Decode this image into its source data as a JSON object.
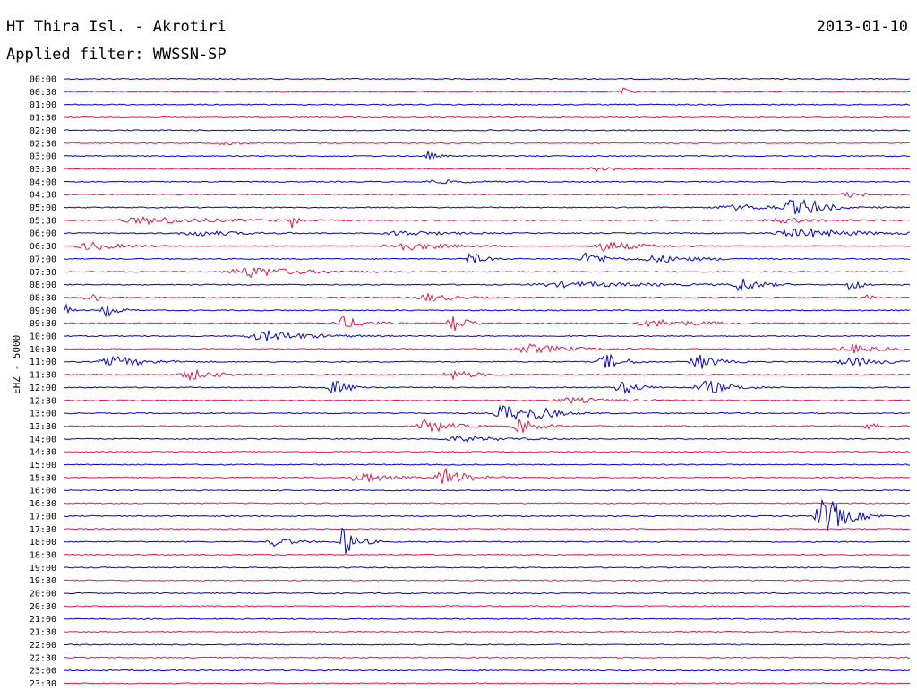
{
  "header": {
    "station": "HT Thira Isl. - Akrotiri",
    "date": "2013-01-10",
    "filter": "Applied filter: WWSSN-SP"
  },
  "chart_data": {
    "type": "line",
    "title": "HT Thira Isl. - Akrotiri",
    "ylabel": "EHZ - 5000",
    "colors": [
      "#0000cc",
      "#e8174a"
    ],
    "rows": [
      {
        "label": "00:00",
        "bursts": []
      },
      {
        "label": "00:30",
        "bursts": [
          {
            "x": 0.66,
            "amp": 4,
            "w": 0.02
          }
        ]
      },
      {
        "label": "01:00",
        "bursts": []
      },
      {
        "label": "01:30",
        "bursts": []
      },
      {
        "label": "02:00",
        "bursts": []
      },
      {
        "label": "02:30",
        "bursts": [
          {
            "x": 0.19,
            "amp": 3,
            "w": 0.03
          }
        ]
      },
      {
        "label": "03:00",
        "bursts": [
          {
            "x": 0.43,
            "amp": 5,
            "w": 0.02
          }
        ]
      },
      {
        "label": "03:30",
        "bursts": [
          {
            "x": 0.63,
            "amp": 2,
            "w": 0.06
          }
        ]
      },
      {
        "label": "04:00",
        "bursts": [
          {
            "x": 0.44,
            "amp": 2,
            "w": 0.08
          }
        ]
      },
      {
        "label": "04:30",
        "bursts": [
          {
            "x": 0.93,
            "amp": 3,
            "w": 0.05
          }
        ]
      },
      {
        "label": "05:00",
        "bursts": [
          {
            "x": 0.86,
            "amp": 8,
            "w": 0.04
          },
          {
            "x": 0.88,
            "amp": 6,
            "w": 0.04
          },
          {
            "x": 0.8,
            "amp": 3,
            "w": 0.15
          }
        ]
      },
      {
        "label": "05:30",
        "bursts": [
          {
            "x": 0.1,
            "amp": 4,
            "w": 0.17
          },
          {
            "x": 0.27,
            "amp": 12,
            "w": 0.01
          },
          {
            "x": 0.85,
            "amp": 3,
            "w": 0.1
          }
        ]
      },
      {
        "label": "06:00",
        "bursts": [
          {
            "x": 0.16,
            "amp": 3,
            "w": 0.1
          },
          {
            "x": 0.4,
            "amp": 3,
            "w": 0.1
          },
          {
            "x": 0.87,
            "amp": 5,
            "w": 0.14
          }
        ]
      },
      {
        "label": "06:30",
        "bursts": [
          {
            "x": 0.03,
            "amp": 5,
            "w": 0.07
          },
          {
            "x": 0.4,
            "amp": 5,
            "w": 0.1
          },
          {
            "x": 0.64,
            "amp": 6,
            "w": 0.08
          }
        ]
      },
      {
        "label": "07:00",
        "bursts": [
          {
            "x": 0.48,
            "amp": 8,
            "w": 0.03
          },
          {
            "x": 0.62,
            "amp": 9,
            "w": 0.04
          },
          {
            "x": 0.7,
            "amp": 4,
            "w": 0.1
          }
        ]
      },
      {
        "label": "07:30",
        "bursts": [
          {
            "x": 0.22,
            "amp": 6,
            "w": 0.12
          }
        ]
      },
      {
        "label": "08:00",
        "bursts": [
          {
            "x": 0.8,
            "amp": 9,
            "w": 0.04
          },
          {
            "x": 0.93,
            "amp": 10,
            "w": 0.02
          },
          {
            "x": 0.6,
            "amp": 3,
            "w": 0.2
          }
        ]
      },
      {
        "label": "08:30",
        "bursts": [
          {
            "x": 0.03,
            "amp": 6,
            "w": 0.03
          },
          {
            "x": 0.43,
            "amp": 5,
            "w": 0.06
          },
          {
            "x": 0.95,
            "amp": 8,
            "w": 0.01
          }
        ]
      },
      {
        "label": "09:00",
        "bursts": [
          {
            "x": 0.0,
            "amp": 10,
            "w": 0.01
          },
          {
            "x": 0.05,
            "amp": 7,
            "w": 0.03
          }
        ]
      },
      {
        "label": "09:30",
        "bursts": [
          {
            "x": 0.33,
            "amp": 7,
            "w": 0.05
          },
          {
            "x": 0.46,
            "amp": 12,
            "w": 0.03
          },
          {
            "x": 0.7,
            "amp": 4,
            "w": 0.12
          }
        ]
      },
      {
        "label": "10:00",
        "bursts": [
          {
            "x": 0.24,
            "amp": 6,
            "w": 0.1
          }
        ]
      },
      {
        "label": "10:30",
        "bursts": [
          {
            "x": 0.55,
            "amp": 5,
            "w": 0.1
          },
          {
            "x": 0.93,
            "amp": 5,
            "w": 0.07
          }
        ]
      },
      {
        "label": "11:00",
        "bursts": [
          {
            "x": 0.06,
            "amp": 6,
            "w": 0.08
          },
          {
            "x": 0.64,
            "amp": 10,
            "w": 0.04
          },
          {
            "x": 0.75,
            "amp": 10,
            "w": 0.04
          },
          {
            "x": 0.93,
            "amp": 5,
            "w": 0.07
          }
        ]
      },
      {
        "label": "11:30",
        "bursts": [
          {
            "x": 0.15,
            "amp": 6,
            "w": 0.06
          },
          {
            "x": 0.46,
            "amp": 5,
            "w": 0.06
          }
        ]
      },
      {
        "label": "12:00",
        "bursts": [
          {
            "x": 0.32,
            "amp": 8,
            "w": 0.04
          },
          {
            "x": 0.66,
            "amp": 8,
            "w": 0.04
          },
          {
            "x": 0.76,
            "amp": 8,
            "w": 0.06
          }
        ]
      },
      {
        "label": "12:30",
        "bursts": [
          {
            "x": 0.6,
            "amp": 3,
            "w": 0.1
          }
        ]
      },
      {
        "label": "13:00",
        "bursts": [
          {
            "x": 0.52,
            "amp": 11,
            "w": 0.05
          },
          {
            "x": 0.56,
            "amp": 6,
            "w": 0.05
          }
        ]
      },
      {
        "label": "13:30",
        "bursts": [
          {
            "x": 0.43,
            "amp": 9,
            "w": 0.05
          },
          {
            "x": 0.54,
            "amp": 9,
            "w": 0.04
          },
          {
            "x": 0.95,
            "amp": 3,
            "w": 0.04
          }
        ]
      },
      {
        "label": "14:00",
        "bursts": [
          {
            "x": 0.47,
            "amp": 3,
            "w": 0.1
          }
        ]
      },
      {
        "label": "14:30",
        "bursts": []
      },
      {
        "label": "15:00",
        "bursts": []
      },
      {
        "label": "15:30",
        "bursts": [
          {
            "x": 0.35,
            "amp": 8,
            "w": 0.05
          },
          {
            "x": 0.45,
            "amp": 11,
            "w": 0.05
          }
        ]
      },
      {
        "label": "16:00",
        "bursts": []
      },
      {
        "label": "16:30",
        "bursts": []
      },
      {
        "label": "17:00",
        "bursts": [
          {
            "x": 0.9,
            "amp": 24,
            "w": 0.05
          }
        ]
      },
      {
        "label": "17:30",
        "bursts": []
      },
      {
        "label": "18:00",
        "bursts": [
          {
            "x": 0.25,
            "amp": 6,
            "w": 0.04
          },
          {
            "x": 0.33,
            "amp": 18,
            "w": 0.03
          }
        ]
      },
      {
        "label": "18:30",
        "bursts": []
      },
      {
        "label": "19:00",
        "bursts": []
      },
      {
        "label": "19:30",
        "bursts": []
      },
      {
        "label": "20:00",
        "bursts": []
      },
      {
        "label": "20:30",
        "bursts": []
      },
      {
        "label": "21:00",
        "bursts": []
      },
      {
        "label": "21:30",
        "bursts": []
      },
      {
        "label": "22:00",
        "bursts": []
      },
      {
        "label": "22:30",
        "bursts": []
      },
      {
        "label": "23:00",
        "bursts": []
      },
      {
        "label": "23:30",
        "bursts": []
      }
    ]
  }
}
